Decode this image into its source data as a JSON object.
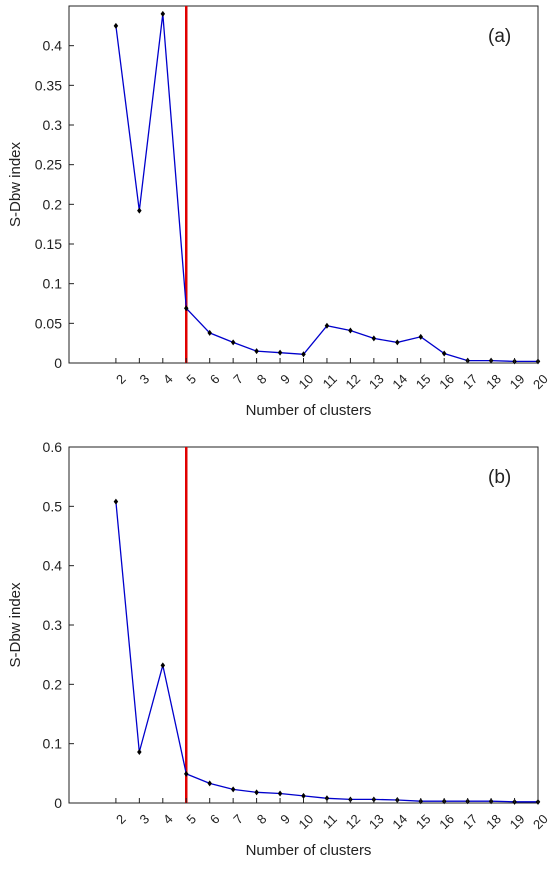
{
  "colors": {
    "line": "#0000cc",
    "marker": "#000000",
    "threshold": "#e00000",
    "axis": "#222222",
    "background": "#ffffff"
  },
  "chart_data": [
    {
      "type": "line",
      "panel_label": "(a)",
      "xlabel": "Number of clusters",
      "ylabel": "S-Dbw index",
      "xlim": [
        0,
        20
      ],
      "ylim": [
        0,
        0.45
      ],
      "x": [
        2,
        3,
        4,
        5,
        6,
        7,
        8,
        9,
        10,
        11,
        12,
        13,
        14,
        15,
        16,
        17,
        18,
        19,
        20
      ],
      "x_tick_labels": [
        "2",
        "3",
        "4",
        "5",
        "6",
        "7",
        "8",
        "9",
        "10",
        "11",
        "12",
        "13",
        "14",
        "15",
        "16",
        "17",
        "18",
        "19",
        "20"
      ],
      "y_ticks": [
        0,
        0.05,
        0.1,
        0.15,
        0.2,
        0.25,
        0.3,
        0.35,
        0.4
      ],
      "y_tick_labels": [
        "0",
        "0.05",
        "0.1",
        "0.15",
        "0.2",
        "0.25",
        "0.3",
        "0.35",
        "0.4"
      ],
      "values": [
        0.425,
        0.192,
        0.44,
        0.069,
        0.038,
        0.026,
        0.015,
        0.013,
        0.011,
        0.047,
        0.041,
        0.031,
        0.026,
        0.033,
        0.012,
        0.003,
        0.003,
        0.002,
        0.002
      ],
      "reference_line_x": 5,
      "grid": false
    },
    {
      "type": "line",
      "panel_label": "(b)",
      "xlabel": "Number of clusters",
      "ylabel": "S-Dbw index",
      "xlim": [
        0,
        20
      ],
      "ylim": [
        0,
        0.6
      ],
      "x": [
        2,
        3,
        4,
        5,
        6,
        7,
        8,
        9,
        10,
        11,
        12,
        13,
        14,
        15,
        16,
        17,
        18,
        19,
        20
      ],
      "x_tick_labels": [
        "2",
        "3",
        "4",
        "5",
        "6",
        "7",
        "8",
        "9",
        "10",
        "11",
        "12",
        "13",
        "14",
        "15",
        "16",
        "17",
        "18",
        "19",
        "20"
      ],
      "y_ticks": [
        0,
        0.1,
        0.2,
        0.3,
        0.4,
        0.5,
        0.6
      ],
      "y_tick_labels": [
        "0",
        "0.1",
        "0.2",
        "0.3",
        "0.4",
        "0.5",
        "0.6"
      ],
      "values": [
        0.508,
        0.086,
        0.232,
        0.049,
        0.033,
        0.023,
        0.018,
        0.016,
        0.012,
        0.008,
        0.006,
        0.006,
        0.005,
        0.003,
        0.003,
        0.003,
        0.003,
        0.002,
        0.002
      ],
      "reference_line_x": 5,
      "grid": false
    }
  ]
}
